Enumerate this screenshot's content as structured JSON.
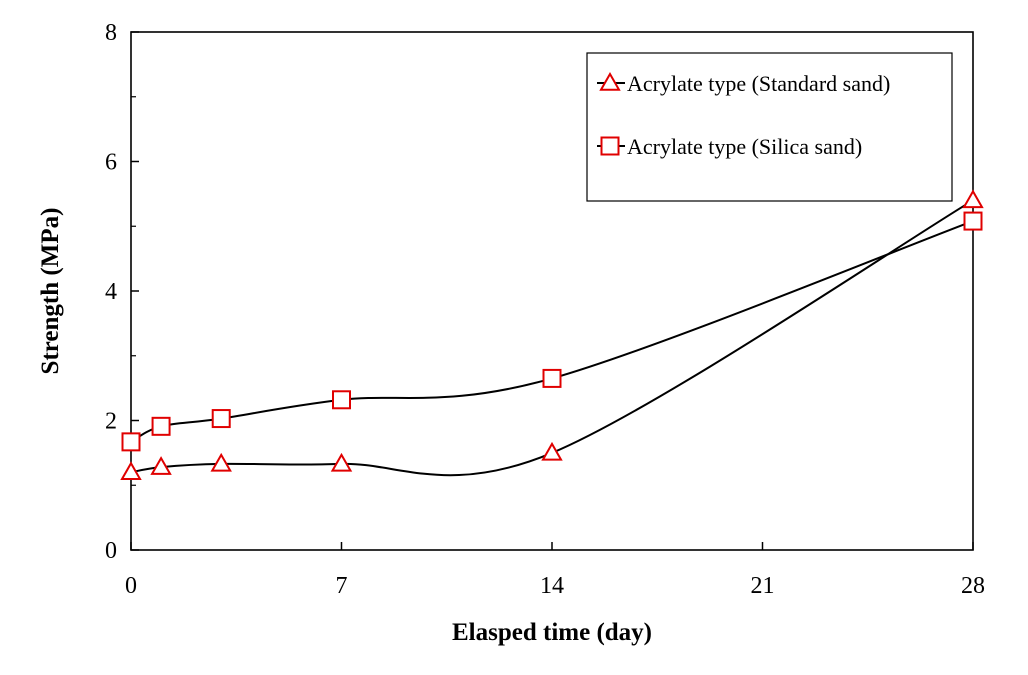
{
  "chart_data": {
    "type": "line",
    "xlabel": "Elasped time (day)",
    "ylabel": "Strength (MPa)",
    "xlim": [
      0,
      28
    ],
    "ylim": [
      0,
      8
    ],
    "xticks": [
      0,
      7,
      14,
      21,
      28
    ],
    "yticks": [
      0,
      2,
      4,
      6,
      8
    ],
    "grid": false,
    "legend_position": "top-right",
    "series": [
      {
        "name": "Acrylate type (Standard sand)",
        "marker": "triangle",
        "marker_color": "#e00000",
        "line_color": "#000000",
        "x": [
          0,
          1,
          3,
          7,
          14,
          28
        ],
        "y": [
          1.2,
          1.28,
          1.33,
          1.33,
          1.5,
          5.4
        ]
      },
      {
        "name": "Acrylate type (Silica sand)",
        "marker": "square",
        "marker_color": "#e00000",
        "line_color": "#000000",
        "x": [
          0,
          1,
          3,
          7,
          14,
          28
        ],
        "y": [
          1.67,
          1.91,
          2.03,
          2.32,
          2.65,
          5.08
        ]
      }
    ]
  }
}
